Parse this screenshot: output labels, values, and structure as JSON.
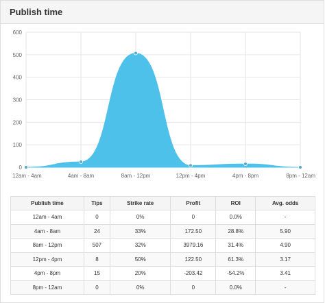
{
  "panel": {
    "title": "Publish time"
  },
  "chart_data": {
    "type": "area",
    "categories": [
      "12am - 4am",
      "4am - 8am",
      "8am - 12pm",
      "12pm - 4pm",
      "4pm - 8pm",
      "8pm - 12am"
    ],
    "series": [
      {
        "values": [
          0,
          24,
          507,
          8,
          15,
          0
        ]
      }
    ],
    "ylim": [
      0,
      600
    ],
    "yticks": [
      0,
      100,
      200,
      300,
      400,
      500,
      600
    ],
    "grid": true,
    "fill_color": "#4ec1ea",
    "point_color": "#5aa9c9"
  },
  "table": {
    "headers": [
      "Publish time",
      "Tips",
      "Strike rate",
      "Profit",
      "ROI",
      "Avg. odds"
    ],
    "rows": [
      [
        "12am - 4am",
        "0",
        "0%",
        "0",
        "0.0%",
        "-"
      ],
      [
        "4am - 8am",
        "24",
        "33%",
        "172.50",
        "28.8%",
        "5.90"
      ],
      [
        "8am - 12pm",
        "507",
        "32%",
        "3979.16",
        "31.4%",
        "4.90"
      ],
      [
        "12pm - 4pm",
        "8",
        "50%",
        "122.50",
        "61.3%",
        "3.17"
      ],
      [
        "4pm - 8pm",
        "15",
        "20%",
        "-203.42",
        "-54.2%",
        "3.41"
      ],
      [
        "8pm - 12am",
        "0",
        "0%",
        "0",
        "0.0%",
        "-"
      ]
    ]
  }
}
